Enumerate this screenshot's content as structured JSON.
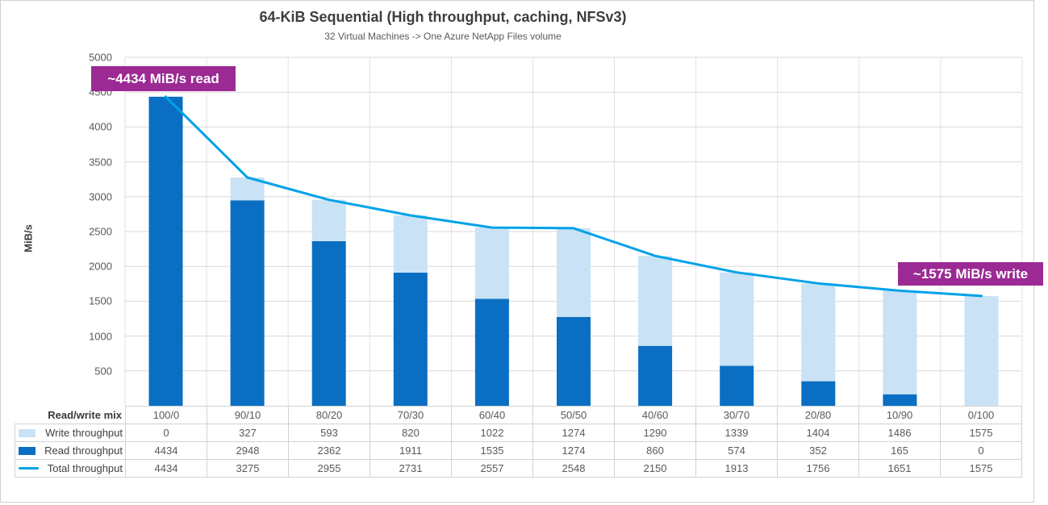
{
  "header": {
    "title": "64-KiB Sequential (High throughput, caching, NFSv3)",
    "subtitle": "32 Virtual Machines -> One Azure NetApp Files volume"
  },
  "annotations": {
    "read": "~4434 MiB/s read",
    "write": "~1575 MiB/s write"
  },
  "y_axis": {
    "title": "MiB/s",
    "ticks": [
      5000,
      4500,
      4000,
      3500,
      3000,
      2500,
      2000,
      1500,
      1000,
      500
    ]
  },
  "table": {
    "mix_label": "Read/write mix"
  },
  "chart_data": {
    "type": "combo-stacked-bar-line",
    "title": "64-KiB Sequential (High throughput, caching, NFSv3)",
    "subtitle": "32 Virtual Machines -> One Azure NetApp Files volume",
    "xlabel": "Read/write mix",
    "ylabel": "MiB/s",
    "ylim": [
      0,
      5000
    ],
    "grid": true,
    "legend_position": "data-table-below-chart",
    "categories": [
      "100/0",
      "90/10",
      "80/20",
      "70/30",
      "60/40",
      "50/50",
      "40/60",
      "30/70",
      "20/80",
      "10/90",
      "0/100"
    ],
    "series": [
      {
        "name": "Write throughput",
        "type": "bar-stacked",
        "swatch": "rect",
        "color": "#c9e2f5",
        "values": [
          0,
          327,
          593,
          820,
          1022,
          1274,
          1290,
          1339,
          1404,
          1486,
          1575
        ]
      },
      {
        "name": "Read throughput",
        "type": "bar-stacked",
        "swatch": "rect",
        "color": "#0a6fc2",
        "values": [
          4434,
          2948,
          2362,
          1911,
          1535,
          1274,
          860,
          574,
          352,
          165,
          0
        ]
      },
      {
        "name": "Total throughput",
        "type": "line",
        "swatch": "line",
        "color": "#00a2e8",
        "values": [
          4434,
          3275,
          2955,
          2731,
          2557,
          2548,
          2150,
          1913,
          1756,
          1651,
          1575
        ]
      }
    ]
  },
  "colors": {
    "annotation_bg": "#9c2a94",
    "grid_horizontal": "#d9d9d9",
    "grid_vertical": "#e2e2e2",
    "title_text": "#3d3d3d",
    "body_text": "#595959",
    "table_border": "#d2d2d2"
  }
}
